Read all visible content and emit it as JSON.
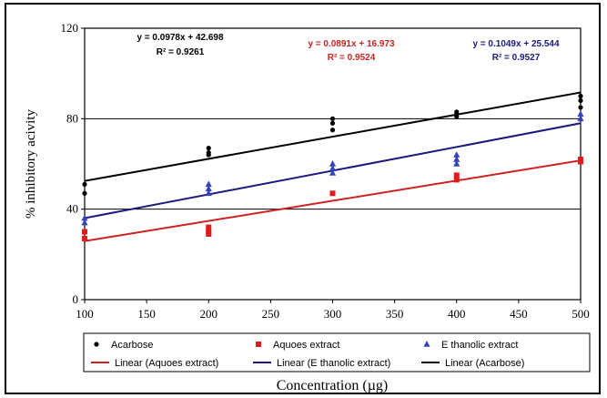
{
  "chart_data": {
    "type": "scatter",
    "xlabel": "Concentration (µg)",
    "ylabel": "% inhibitory acivity",
    "xlim": [
      100,
      500
    ],
    "ylim": [
      0,
      120
    ],
    "xticks": [
      100,
      150,
      200,
      250,
      300,
      350,
      400,
      450,
      500
    ],
    "yticks": [
      0,
      40,
      80,
      120
    ],
    "grid": "horizontal lines at 40 and 80",
    "legend_position": "bottom",
    "series": [
      {
        "name": "Acarbose",
        "marker": "circle",
        "color": "#000000",
        "points": [
          [
            100,
            51
          ],
          [
            100,
            47
          ],
          [
            200,
            67
          ],
          [
            200,
            65
          ],
          [
            200,
            64
          ],
          [
            300,
            80
          ],
          [
            300,
            78
          ],
          [
            300,
            75
          ],
          [
            400,
            83
          ],
          [
            400,
            82
          ],
          [
            400,
            81
          ],
          [
            500,
            90
          ],
          [
            500,
            88
          ],
          [
            500,
            85
          ]
        ],
        "trend_label": "Linear (Acarbose)",
        "equation": "y = 0.0978x + 42.698",
        "r2": "R² = 0.9261",
        "trend_color": "#000000",
        "slope": 0.0978,
        "intercept": 42.698
      },
      {
        "name": "Aquoes extract",
        "marker": "square",
        "color": "#e31a1c",
        "points": [
          [
            100,
            30
          ],
          [
            100,
            27
          ],
          [
            200,
            32
          ],
          [
            200,
            30
          ],
          [
            200,
            29
          ],
          [
            300,
            47
          ],
          [
            400,
            55
          ],
          [
            400,
            53
          ],
          [
            500,
            62
          ],
          [
            500,
            61
          ]
        ],
        "trend_label": "Linear (Aquoes extract)",
        "equation": "y = 0.0891x + 16.973",
        "r2": "R² = 0.9524",
        "trend_color": "#cc2222",
        "slope": 0.0891,
        "intercept": 16.973
      },
      {
        "name": "E thanolic extract",
        "marker": "triangle",
        "color": "#3344bb",
        "points": [
          [
            100,
            36
          ],
          [
            100,
            34
          ],
          [
            200,
            51
          ],
          [
            200,
            49
          ],
          [
            200,
            47
          ],
          [
            300,
            60
          ],
          [
            300,
            58
          ],
          [
            300,
            56
          ],
          [
            400,
            64
          ],
          [
            400,
            62
          ],
          [
            400,
            60
          ],
          [
            500,
            82
          ],
          [
            500,
            80
          ]
        ],
        "trend_label": "Linear (E thanolic extract)",
        "equation": "y = 0.1049x + 25.544",
        "r2": "R² = 0.9527",
        "trend_color": "#1a1a80",
        "slope": 0.1049,
        "intercept": 25.544
      }
    ]
  }
}
